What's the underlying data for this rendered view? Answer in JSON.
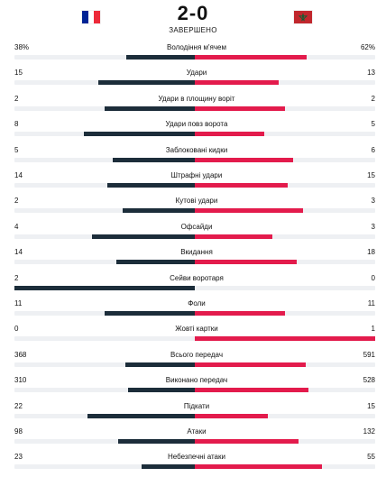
{
  "match": {
    "home_flag_icon": "flag-france-icon",
    "away_flag_icon": "flag-morocco-icon",
    "score": "2-0",
    "status": "ЗАВЕРШЕНО"
  },
  "colors": {
    "home_bar": "#1c2d3a",
    "away_bar": "#e31b4c",
    "track": "#eef0f3"
  },
  "chart_data": {
    "type": "bar",
    "categories": [
      "Володіння м'ячем",
      "Удари",
      "Удари в площину воріт",
      "Удари повз ворота",
      "Заблоковані кидки",
      "Штрафні удари",
      "Кутові удари",
      "Офсайди",
      "Вкидання",
      "Сейви воротаря",
      "Фоли",
      "Жовті картки",
      "Всього передач",
      "Виконано передач",
      "Підкати",
      "Атаки",
      "Небезпечні атаки"
    ],
    "series": [
      {
        "side": "home",
        "values": [
          38,
          15,
          2,
          8,
          5,
          14,
          2,
          4,
          14,
          2,
          11,
          0,
          368,
          310,
          22,
          98,
          23
        ],
        "display": [
          "38%",
          "15",
          "2",
          "8",
          "5",
          "14",
          "2",
          "4",
          "14",
          "2",
          "11",
          "0",
          "368",
          "310",
          "22",
          "98",
          "23"
        ]
      },
      {
        "side": "away",
        "values": [
          62,
          13,
          2,
          5,
          6,
          15,
          3,
          3,
          18,
          0,
          11,
          1,
          591,
          528,
          15,
          132,
          55
        ],
        "display": [
          "62%",
          "13",
          "2",
          "5",
          "6",
          "15",
          "3",
          "3",
          "18",
          "0",
          "11",
          "1",
          "591",
          "528",
          "15",
          "132",
          "55"
        ]
      }
    ],
    "xlabel": "",
    "ylabel": ""
  }
}
